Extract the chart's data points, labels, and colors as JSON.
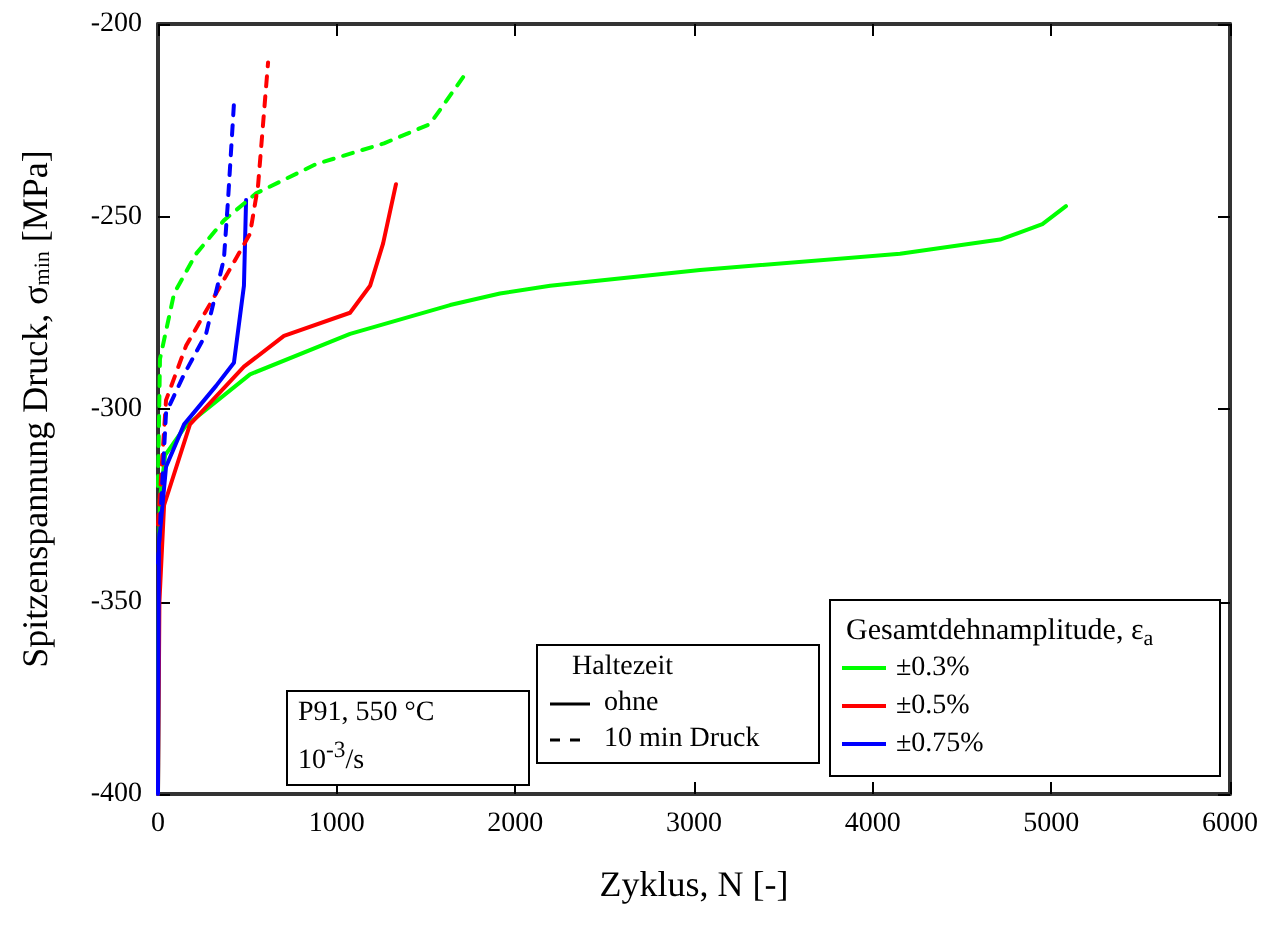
{
  "chart_data": {
    "type": "line",
    "xlabel": "Zyklus, N [-]",
    "ylabel": "Spitzenspannung Druck, σ$_{min}$ [MPa]",
    "legend_title": "Gesamtdehnamplitude, ε$_{a}$",
    "xlim": [
      0,
      6000
    ],
    "xticks": [
      0,
      1000,
      2000,
      3000,
      4000,
      5000,
      6000
    ],
    "ylim": [
      -400,
      -200
    ],
    "yticks": [
      -400,
      -350,
      -300,
      -250,
      -200
    ],
    "grid": false,
    "legend": "bottom right",
    "marker": "none",
    "annotations": [
      "P91, 550 °C",
      "10$^{-3}$/s",
      "Haltezeit",
      "ohne",
      "10 min Druck"
    ],
    "series": [
      {
        "name": "±0.3%",
        "color": "#00ff00",
        "line_style": "solid",
        "x": [
          0,
          5,
          10,
          40,
          155,
          515,
          1075,
          1635,
          1914,
          2195,
          3034,
          4153,
          4713,
          4950,
          5082
        ],
        "values": [
          -400,
          -350,
          -323.6,
          -312,
          -304.4,
          -291,
          -280.5,
          -273,
          -270,
          -268,
          -263.9,
          -259.7,
          -256,
          -252,
          -247.3
        ]
      },
      {
        "name": "±0.5%",
        "color": "#ff0000",
        "line_style": "solid",
        "x": [
          0,
          8,
          34,
          179,
          481,
          705,
          1075,
          1187,
          1260,
          1332
        ],
        "values": [
          -400,
          -350,
          -325,
          -304,
          -289,
          -281,
          -275,
          -268,
          -257,
          -241.6
        ]
      },
      {
        "name": "±0.75%",
        "color": "#0000ff",
        "line_style": "solid",
        "x": [
          0,
          5,
          45,
          146,
          325,
          425,
          481,
          493
        ],
        "values": [
          -400,
          -335,
          -315,
          -304,
          -294,
          -288,
          -268,
          -245.7
        ]
      },
      {
        "color": "#00ff00",
        "line_style": "dashed",
        "x": [
          0,
          11,
          90,
          213,
          369,
          549,
          884,
          1265,
          1522,
          1735
        ],
        "values": [
          -320,
          -287,
          -270,
          -259.7,
          -251,
          -244,
          -236.4,
          -231,
          -226,
          -212
        ]
      },
      {
        "color": "#ff0000",
        "line_style": "dashed",
        "x": [
          0,
          45,
          157,
          325,
          515,
          560,
          616
        ],
        "values": [
          -330,
          -297.7,
          -283.6,
          -270,
          -254.5,
          -242,
          -210
        ]
      },
      {
        "color": "#0000ff",
        "line_style": "dashed",
        "x": [
          0,
          45,
          146,
          269,
          369,
          392,
          425
        ],
        "values": [
          -340,
          -301,
          -291,
          -280.5,
          -261,
          -245.7,
          -220.8
        ]
      }
    ]
  }
}
